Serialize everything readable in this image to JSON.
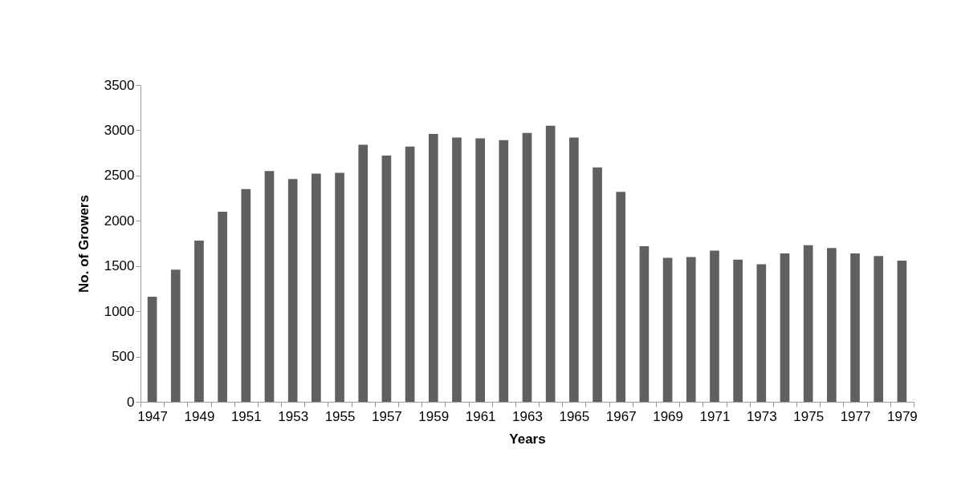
{
  "chart_data": {
    "type": "bar",
    "xlabel": "Years",
    "ylabel": "No. of Growers",
    "categories": [
      "1947",
      null,
      "1949",
      null,
      "1951",
      null,
      "1953",
      null,
      "1955",
      null,
      "1957",
      null,
      "1959",
      null,
      "1961",
      null,
      "1963",
      null,
      "1965",
      null,
      "1967",
      null,
      "1969",
      null,
      "1971",
      null,
      "1973",
      null,
      "1975",
      null,
      "1977",
      null,
      "1979"
    ],
    "values": [
      1160,
      1460,
      1780,
      2100,
      2350,
      2550,
      2460,
      2520,
      2530,
      2840,
      2720,
      2820,
      2960,
      2920,
      2910,
      2890,
      2970,
      3050,
      2920,
      2590,
      2320,
      1720,
      1590,
      1600,
      1670,
      1570,
      1520,
      1640,
      1730,
      1700,
      1640,
      1610,
      1560
    ],
    "color": "#606060",
    "ylim": [
      0,
      3500
    ],
    "yticks": [
      0,
      500,
      1000,
      1500,
      2000,
      2500,
      3000,
      3500
    ],
    "grid": false
  }
}
